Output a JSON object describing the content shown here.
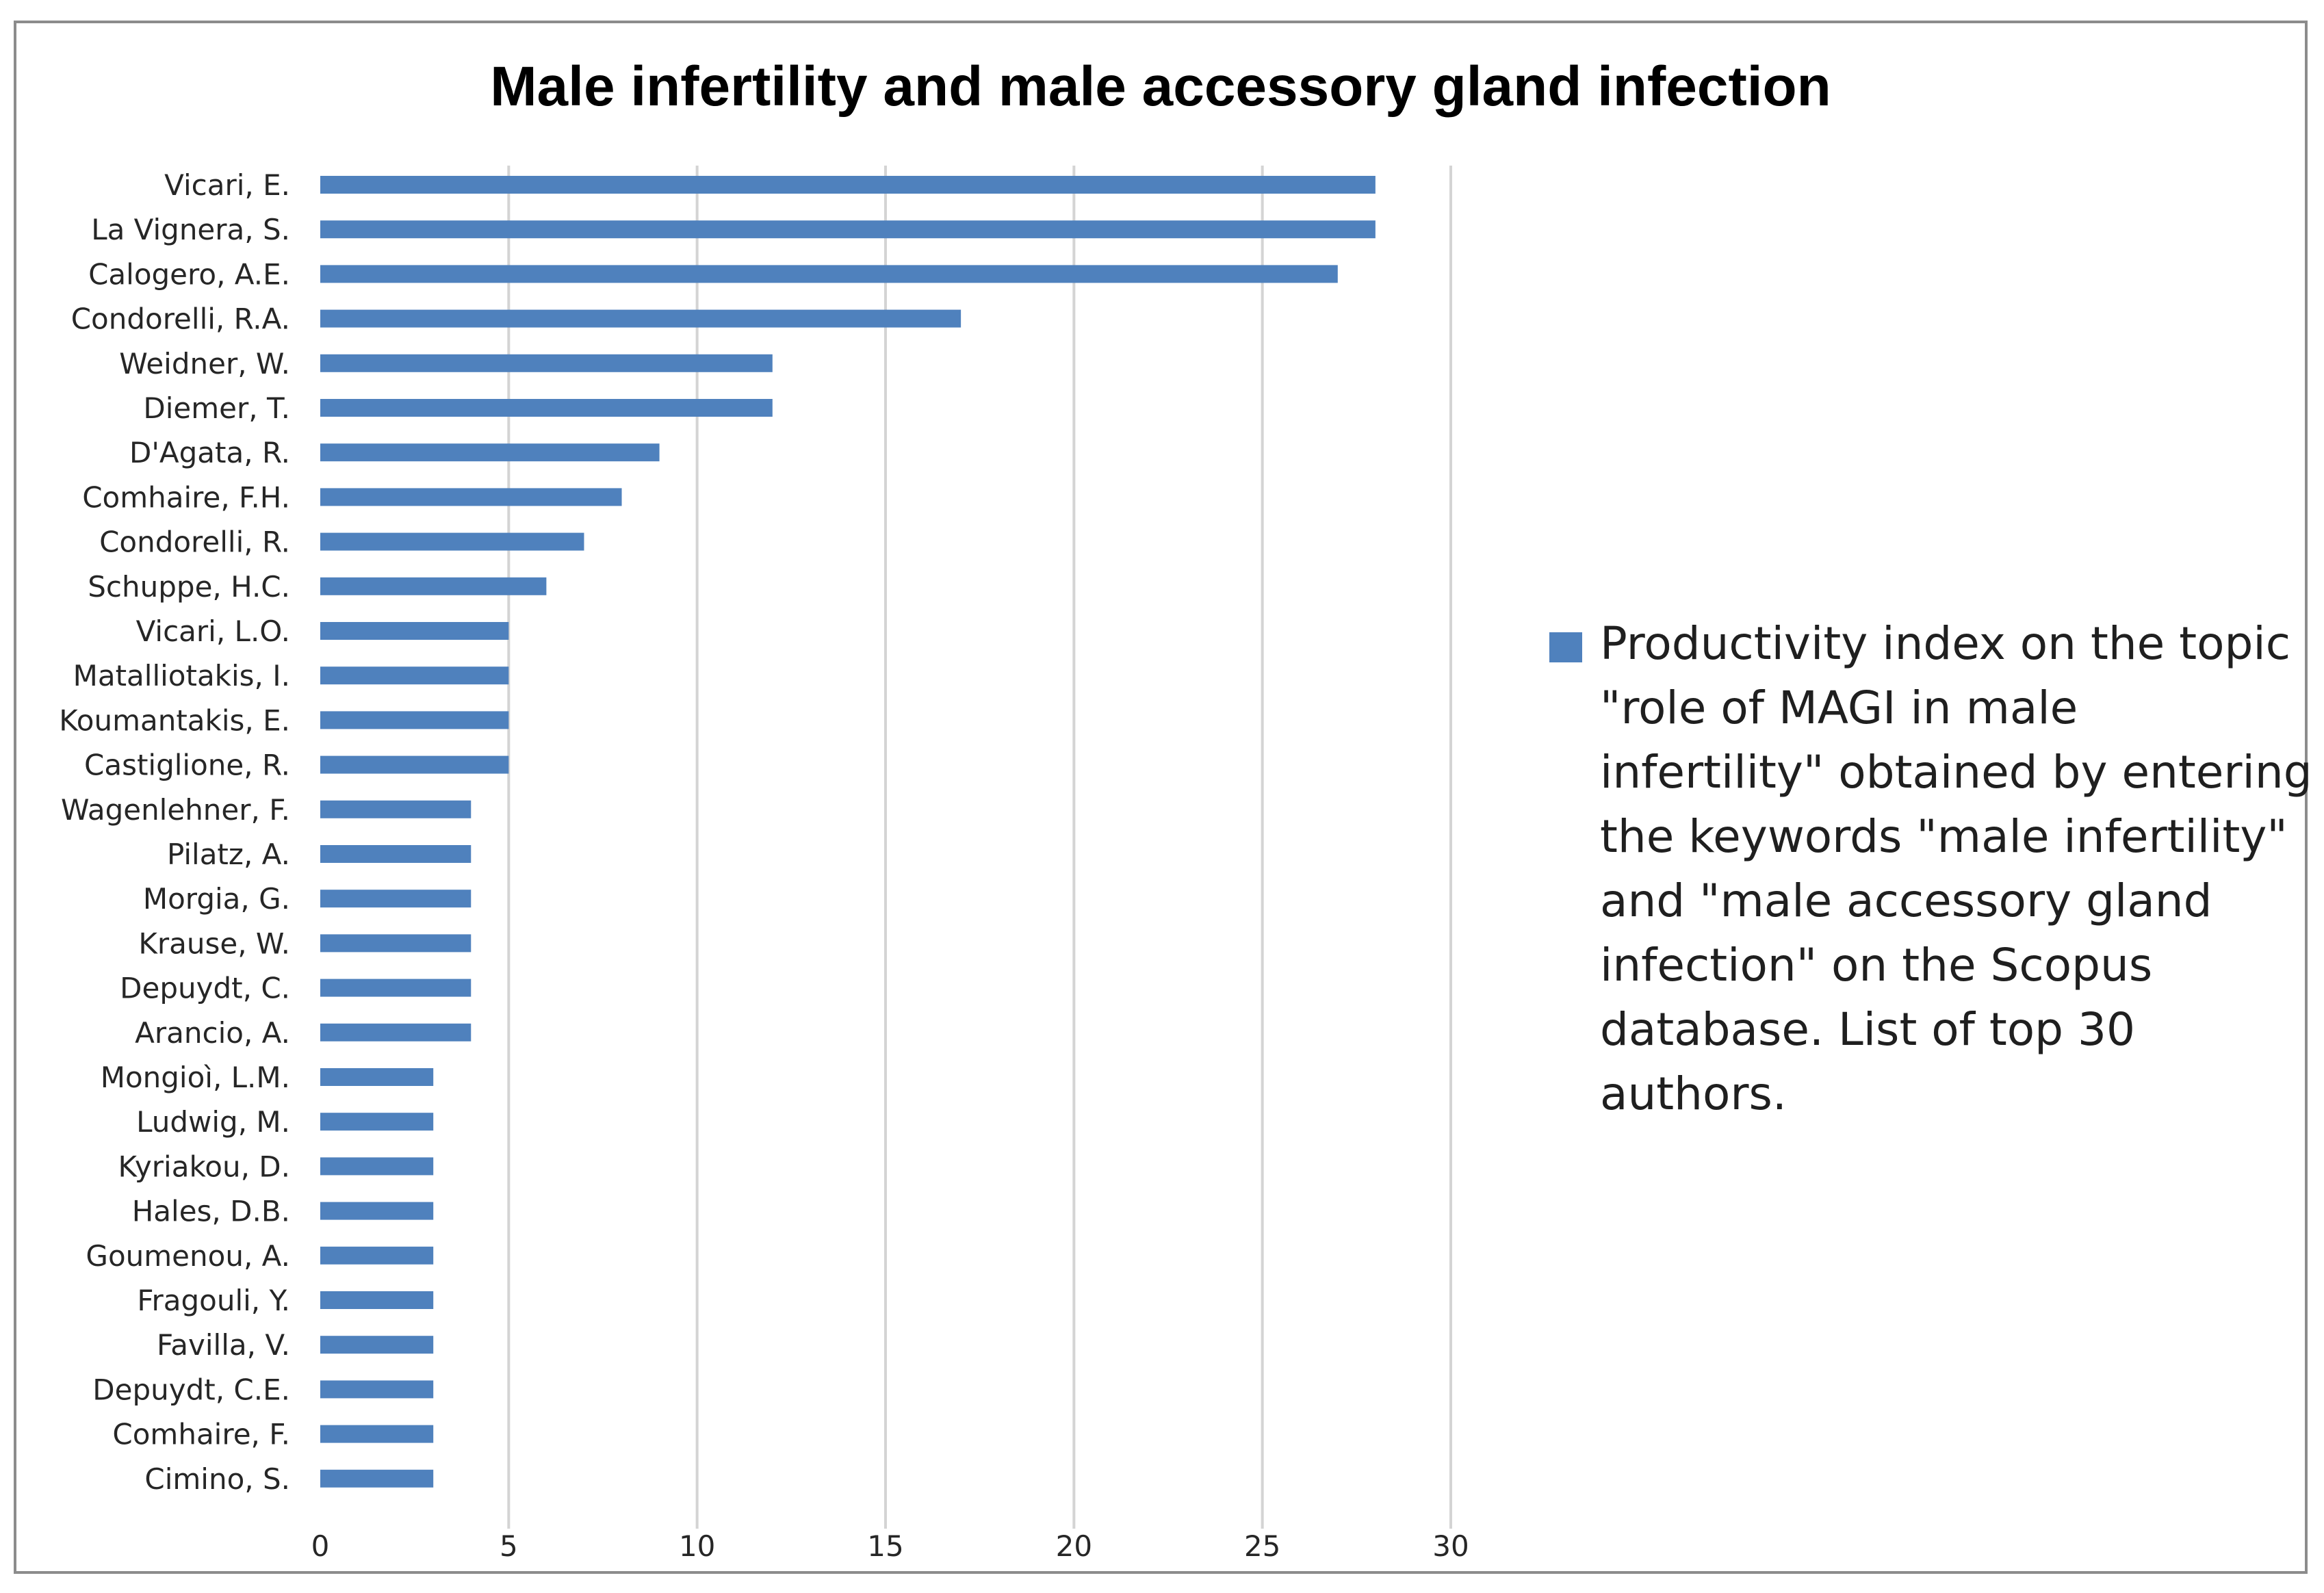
{
  "chart_data": {
    "type": "bar",
    "orientation": "horizontal",
    "title": "Male infertility and male accessory gland infection",
    "xlabel": "",
    "ylabel": "",
    "xlim": [
      0,
      30
    ],
    "x_ticks": [
      0,
      5,
      10,
      15,
      20,
      25,
      30
    ],
    "grid": true,
    "legend_position": "right",
    "bar_color": "#4f81bd",
    "categories": [
      "Vicari, E.",
      "La Vignera, S.",
      "Calogero, A.E.",
      "Condorelli, R.A.",
      "Weidner, W.",
      "Diemer, T.",
      "D'Agata, R.",
      "Comhaire, F.H.",
      "Condorelli, R.",
      "Schuppe, H.C.",
      "Vicari, L.O.",
      "Matalliotakis, I.",
      "Koumantakis, E.",
      "Castiglione, R.",
      "Wagenlehner, F.",
      "Pilatz, A.",
      "Morgia, G.",
      "Krause, W.",
      "Depuydt, C.",
      "Arancio, A.",
      "Mongioì, L.M.",
      "Ludwig, M.",
      "Kyriakou, D.",
      "Hales, D.B.",
      "Goumenou, A.",
      "Fragouli, Y.",
      "Favilla, V.",
      "Depuydt, C.E.",
      "Comhaire, F.",
      "Cimino, S."
    ],
    "series": [
      {
        "name": "Productivity index on the topic \"role of MAGI in male infertility\" obtained by entering the keywords \"male infertility\" and \"male accessory gland infection\" on the Scopus database. List of top 30 authors.",
        "values": [
          28,
          28,
          27,
          17,
          12,
          12,
          9,
          8,
          7,
          6,
          5,
          5,
          5,
          5,
          4,
          4,
          4,
          4,
          4,
          4,
          3,
          3,
          3,
          3,
          3,
          3,
          3,
          3,
          3,
          3
        ]
      }
    ]
  }
}
